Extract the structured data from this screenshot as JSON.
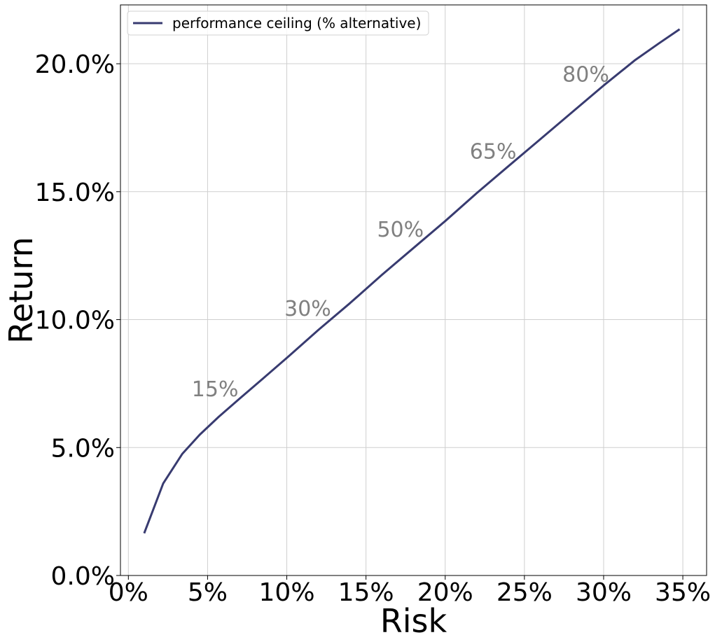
{
  "chart_data": {
    "type": "line",
    "title": "",
    "xlabel": "Risk",
    "ylabel": "Return",
    "xlim": [
      -0.5,
      36.5
    ],
    "ylim": [
      0,
      22.3
    ],
    "x_ticks": [
      0,
      5,
      10,
      15,
      20,
      25,
      30,
      35
    ],
    "x_tick_labels": [
      "0%",
      "5%",
      "10%",
      "15%",
      "20%",
      "25%",
      "30%",
      "35%"
    ],
    "y_ticks": [
      0,
      5,
      10,
      15,
      20
    ],
    "y_tick_labels": [
      "0.0%",
      "5.0%",
      "10.0%",
      "15.0%",
      "20.0%"
    ],
    "grid": true,
    "legend_position": "top-left",
    "series": [
      {
        "name": "performance ceiling (% alternative)",
        "color": "#383b70",
        "x": [
          1.0,
          2.2,
          3.4,
          4.5,
          5.7,
          7.0,
          8.5,
          10.0,
          12.0,
          14.0,
          16.0,
          18.0,
          20.0,
          22.0,
          24.0,
          26.0,
          28.0,
          30.0,
          32.0,
          33.5,
          34.8
        ],
        "y": [
          1.65,
          3.6,
          4.75,
          5.5,
          6.2,
          6.9,
          7.7,
          8.5,
          9.6,
          10.65,
          11.75,
          12.8,
          13.85,
          14.95,
          16.0,
          17.05,
          18.1,
          19.15,
          20.15,
          20.8,
          21.35
        ]
      }
    ],
    "annotations": [
      {
        "text": "15%",
        "x": 4.0,
        "y": 7.0
      },
      {
        "text": "30%",
        "x": 9.85,
        "y": 10.15
      },
      {
        "text": "50%",
        "x": 15.7,
        "y": 13.25
      },
      {
        "text": "65%",
        "x": 21.55,
        "y": 16.3
      },
      {
        "text": "80%",
        "x": 27.4,
        "y": 19.3
      }
    ]
  }
}
